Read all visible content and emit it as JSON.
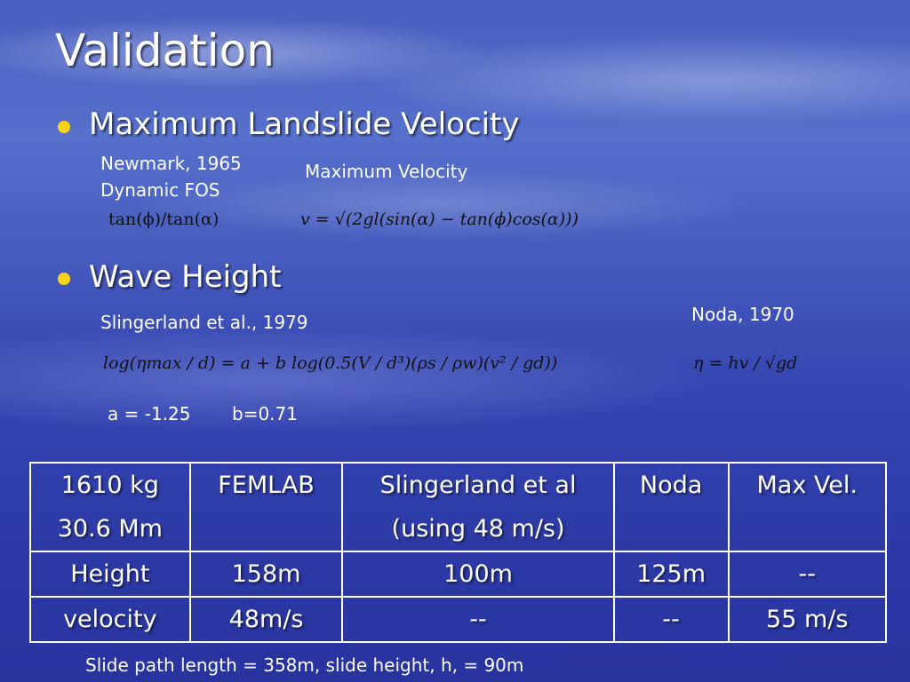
{
  "title": "Validation",
  "sections": [
    {
      "bullet": "Maximum Landslide Velocity",
      "items": [
        {
          "label": "Newmark, 1965\nDynamic FOS",
          "formula": "tan(ϕ)/tan(α)"
        },
        {
          "label": "Maximum Velocity",
          "formula": "v = √(2gl(sin(α) − tan(ϕ)cos(α)))"
        }
      ]
    },
    {
      "bullet": "Wave Height",
      "items": [
        {
          "label": "Slingerland et al., 1979",
          "formula": "log(ηmax / d) = a + b log(0.5(V / d³)(ρs / ρw)(v² / gd))",
          "params": [
            "a = -1.25",
            "b=0.71"
          ]
        },
        {
          "label": "Noda, 1970",
          "formula": "η = hv / √gd"
        }
      ]
    }
  ],
  "table": {
    "rows": [
      [
        "1610 kg\n30.6 Mm",
        "FEMLAB",
        "Slingerland et al\n(using 48 m/s)",
        "Noda",
        "Max Vel."
      ],
      [
        "Height",
        "158m",
        "100m",
        "125m",
        "--"
      ],
      [
        "velocity",
        "48m/s",
        "--",
        "--",
        "55 m/s"
      ]
    ]
  },
  "footnote": "Slide path length = 358m, slide height, h, = 90m"
}
